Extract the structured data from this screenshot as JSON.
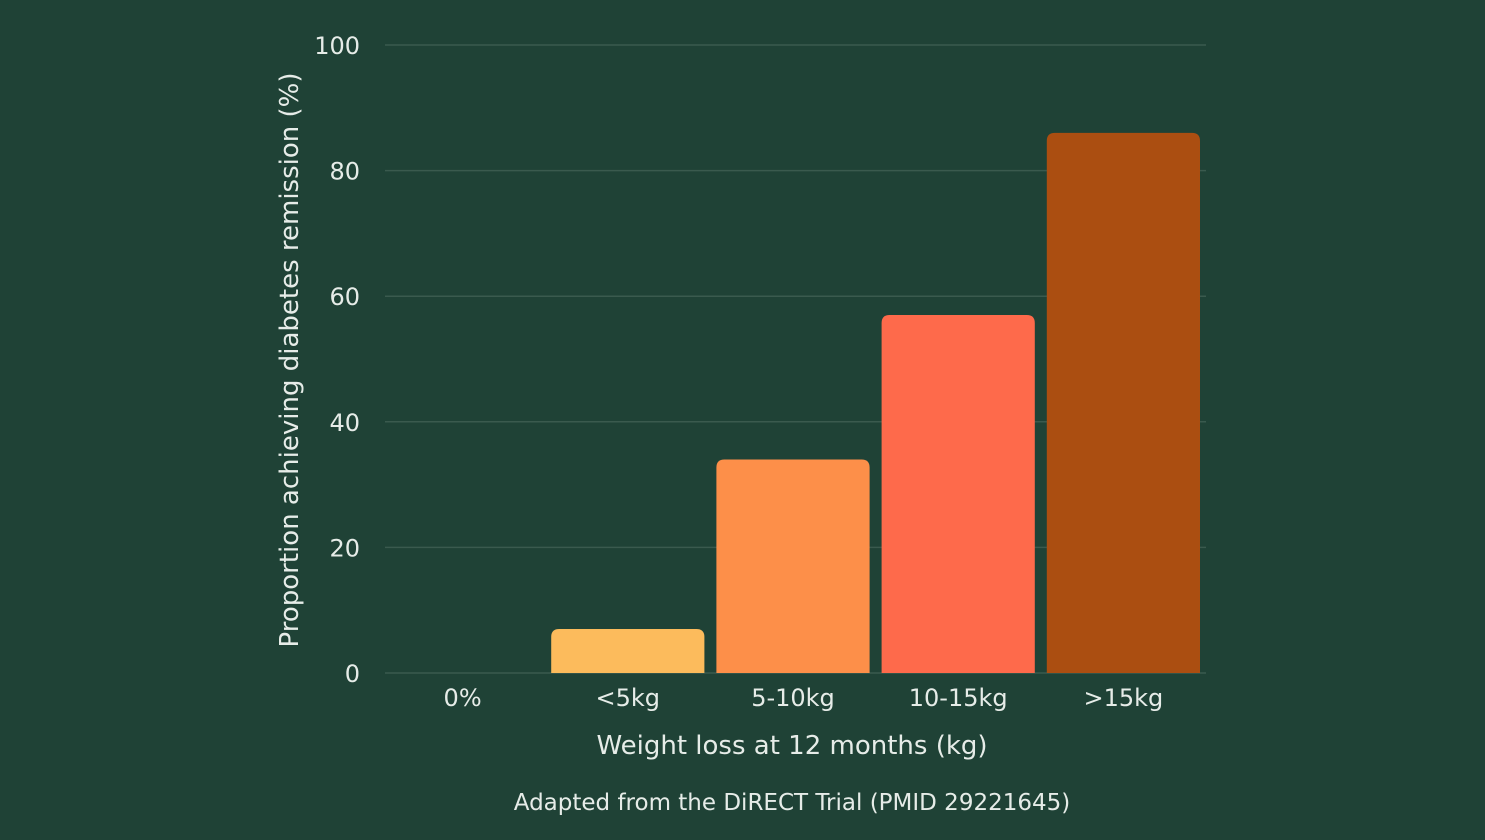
{
  "chart_data": {
    "type": "bar",
    "title": "",
    "xlabel": "Weight loss at 12 months (kg)",
    "ylabel": "Proportion achieving diabetes remission (%)",
    "categories": [
      "0%",
      "<5kg",
      "5-10kg",
      "10-15kg",
      ">15kg"
    ],
    "values": [
      0,
      7,
      34,
      57,
      86
    ],
    "ylim": [
      0,
      100
    ],
    "yticks": [
      0,
      20,
      40,
      60,
      80,
      100
    ],
    "grid": true,
    "legend": "none",
    "colors": [
      "#fcbb5c",
      "#fcbb5c",
      "#fd8f49",
      "#fe6a4b",
      "#ab4e11"
    ],
    "gridline_color": "#3a5a4e",
    "caption": "Adapted from the DiRECT Trial (PMID 29221645)"
  }
}
